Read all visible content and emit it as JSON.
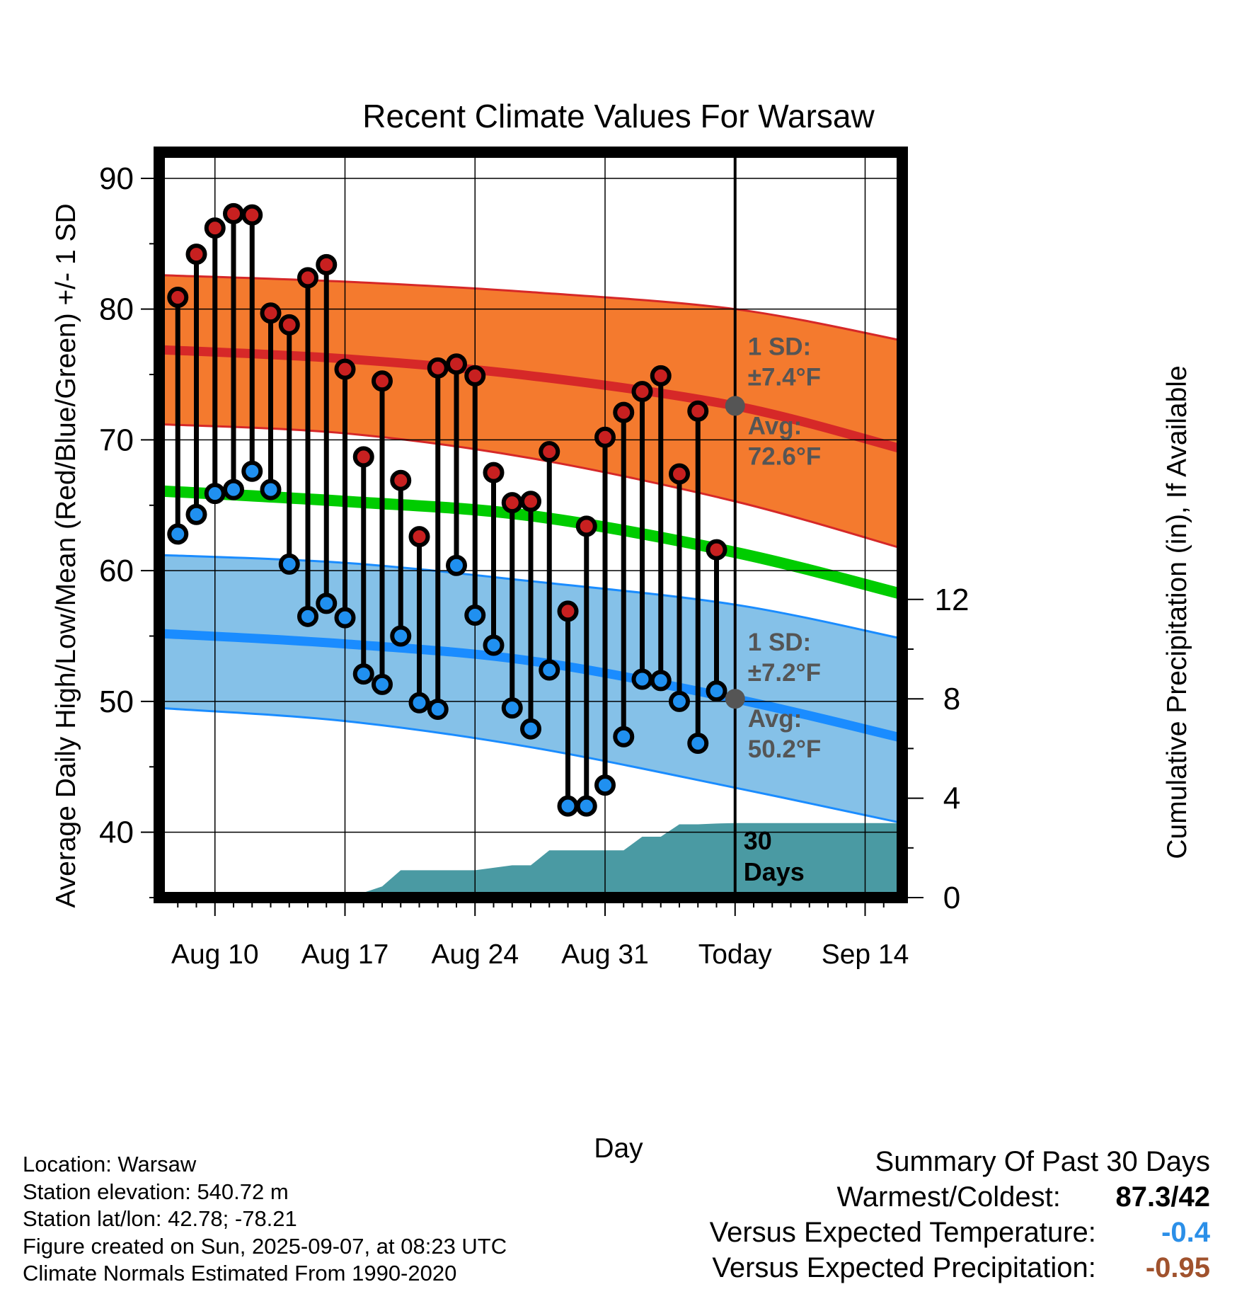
{
  "page": {
    "title": "Recent Climate Values For Warsaw"
  },
  "colors": {
    "high_sd_band": "#f47a2e",
    "high_mean_line": "#d62828",
    "low_sd_band": "#85c1e8",
    "low_mean_line": "#1a8cff",
    "mean_line": "#00cc00",
    "precip_area": "#4a9aa3",
    "high_dot": "#c82020",
    "low_dot": "#2090f0",
    "annotation_text": "#555555",
    "temp_departure": "#2b8fe8",
    "precip_departure": "#a0522d"
  },
  "chart_data": {
    "type": "line",
    "title": "Recent Climate Values For Warsaw",
    "xlabel": "Day",
    "ylabel": "Average Daily High/Low/Mean (Red/Blue/Green) +/- 1 SD",
    "y2label": "Cumulative Precipitation (in), If Available",
    "x_range": [
      "2025-08-07",
      "2025-09-16"
    ],
    "ylim": [
      35,
      92
    ],
    "y2lim": [
      0,
      30
    ],
    "grid": true,
    "x_ticks": [
      {
        "date": "2025-08-10",
        "label": "Aug 10"
      },
      {
        "date": "2025-08-17",
        "label": "Aug 17"
      },
      {
        "date": "2025-08-24",
        "label": "Aug 24"
      },
      {
        "date": "2025-08-31",
        "label": "Aug 31"
      },
      {
        "date": "2025-09-07",
        "label": "Today"
      },
      {
        "date": "2025-09-14",
        "label": "Sep 14"
      }
    ],
    "y_ticks": [
      40,
      50,
      60,
      70,
      80,
      90
    ],
    "y2_ticks": [
      0,
      4,
      8,
      12
    ],
    "today": "2025-09-07",
    "window_label": "30 Days",
    "series": [
      {
        "name": "Daily High",
        "dates": [
          "2025-08-08",
          "2025-08-09",
          "2025-08-10",
          "2025-08-11",
          "2025-08-12",
          "2025-08-13",
          "2025-08-14",
          "2025-08-15",
          "2025-08-16",
          "2025-08-17",
          "2025-08-18",
          "2025-08-19",
          "2025-08-20",
          "2025-08-21",
          "2025-08-22",
          "2025-08-23",
          "2025-08-24",
          "2025-08-25",
          "2025-08-26",
          "2025-08-27",
          "2025-08-28",
          "2025-08-29",
          "2025-08-30",
          "2025-08-31",
          "2025-09-01",
          "2025-09-02",
          "2025-09-03",
          "2025-09-04",
          "2025-09-05",
          "2025-09-06"
        ],
        "values": [
          80.9,
          84.2,
          86.2,
          87.3,
          87.2,
          79.7,
          78.8,
          82.4,
          83.4,
          75.4,
          68.7,
          74.5,
          66.9,
          62.6,
          75.5,
          75.8,
          74.9,
          67.5,
          65.2,
          65.3,
          69.1,
          56.9,
          63.4,
          70.2,
          72.1,
          73.7,
          74.9,
          67.4,
          72.2,
          61.6
        ]
      },
      {
        "name": "Daily Low",
        "dates": [
          "2025-08-08",
          "2025-08-09",
          "2025-08-10",
          "2025-08-11",
          "2025-08-12",
          "2025-08-13",
          "2025-08-14",
          "2025-08-15",
          "2025-08-16",
          "2025-08-17",
          "2025-08-18",
          "2025-08-19",
          "2025-08-20",
          "2025-08-21",
          "2025-08-22",
          "2025-08-23",
          "2025-08-24",
          "2025-08-25",
          "2025-08-26",
          "2025-08-27",
          "2025-08-28",
          "2025-08-29",
          "2025-08-30",
          "2025-08-31",
          "2025-09-01",
          "2025-09-02",
          "2025-09-03",
          "2025-09-04",
          "2025-09-05",
          "2025-09-06"
        ],
        "values": [
          62.8,
          64.3,
          65.9,
          66.2,
          67.6,
          66.2,
          60.5,
          56.5,
          57.5,
          56.4,
          52.1,
          51.3,
          55.0,
          49.9,
          49.4,
          60.4,
          56.6,
          54.3,
          49.5,
          47.9,
          52.4,
          42.0,
          42.0,
          43.6,
          47.3,
          51.7,
          51.6,
          50.0,
          46.8,
          50.8
        ]
      },
      {
        "name": "Normal High",
        "dates": [
          "2025-08-07",
          "2025-08-17",
          "2025-08-27",
          "2025-09-07",
          "2025-09-16"
        ],
        "values": [
          76.9,
          76.2,
          74.9,
          72.6,
          69.3
        ]
      },
      {
        "name": "Normal High +1 SD",
        "dates": [
          "2025-08-07",
          "2025-08-17",
          "2025-08-27",
          "2025-09-07",
          "2025-09-16"
        ],
        "values": [
          82.6,
          82.1,
          81.3,
          80.0,
          77.6
        ]
      },
      {
        "name": "Normal High -1 SD",
        "dates": [
          "2025-08-07",
          "2025-08-17",
          "2025-08-27",
          "2025-09-07",
          "2025-09-16"
        ],
        "values": [
          71.2,
          70.5,
          68.6,
          65.3,
          61.7
        ]
      },
      {
        "name": "Normal Mean",
        "dates": [
          "2025-08-07",
          "2025-08-17",
          "2025-08-27",
          "2025-09-07",
          "2025-09-16"
        ],
        "values": [
          66.1,
          65.3,
          64.2,
          61.4,
          58.2
        ]
      },
      {
        "name": "Normal Low",
        "dates": [
          "2025-08-07",
          "2025-08-17",
          "2025-08-27",
          "2025-09-07",
          "2025-09-16"
        ],
        "values": [
          55.2,
          54.4,
          53.1,
          50.2,
          47.2
        ]
      },
      {
        "name": "Normal Low +1 SD",
        "dates": [
          "2025-08-07",
          "2025-08-17",
          "2025-08-27",
          "2025-09-07",
          "2025-09-16"
        ],
        "values": [
          61.2,
          60.6,
          59.2,
          57.4,
          54.8
        ]
      },
      {
        "name": "Normal Low -1 SD",
        "dates": [
          "2025-08-07",
          "2025-08-17",
          "2025-08-27",
          "2025-09-07",
          "2025-09-16"
        ],
        "values": [
          49.5,
          48.5,
          46.5,
          43.4,
          40.7
        ]
      },
      {
        "name": "Cumulative Precipitation",
        "axis": "y2",
        "dates": [
          "2025-08-07",
          "2025-08-16",
          "2025-08-17",
          "2025-08-18",
          "2025-08-19",
          "2025-08-20",
          "2025-08-21",
          "2025-08-22",
          "2025-08-23",
          "2025-08-24",
          "2025-08-25",
          "2025-08-26",
          "2025-08-27",
          "2025-08-28",
          "2025-08-29",
          "2025-08-30",
          "2025-08-31",
          "2025-09-01",
          "2025-09-02",
          "2025-09-03",
          "2025-09-04",
          "2025-09-05",
          "2025-09-06",
          "2025-09-07",
          "2025-09-16"
        ],
        "values": [
          0,
          0,
          0.2,
          0.2,
          0.45,
          1.1,
          1.1,
          1.1,
          1.1,
          1.1,
          1.2,
          1.3,
          1.3,
          1.9,
          1.9,
          1.9,
          1.9,
          1.9,
          2.45,
          2.45,
          2.95,
          2.95,
          2.98,
          3.0,
          3.0
        ]
      }
    ],
    "annotations": {
      "high_sd_title": "1 SD:",
      "high_sd_value": "±7.4°F",
      "high_avg_title": "Avg:",
      "high_avg_value": "72.6°F",
      "low_sd_title": "1 SD:",
      "low_sd_value": "±7.2°F",
      "low_avg_title": "Avg:",
      "low_avg_value": "50.2°F"
    }
  },
  "info": {
    "location": "Location: Warsaw",
    "elevation": "Station elevation: 540.72 m",
    "latlon": "Station lat/lon: 42.78; -78.21",
    "created": "Figure created on Sun, 2025-09-07, at 08:23 UTC",
    "normals": "Climate Normals Estimated From 1990-2020"
  },
  "summary": {
    "title": "Summary Of Past 30 Days",
    "warmest_label": "Warmest/Coldest:",
    "warmest_value": "87.3/42",
    "temp_label": "Versus Expected Temperature:",
    "temp_value": "-0.4",
    "precip_label": "Versus Expected Precipitation:",
    "precip_value": "-0.95"
  }
}
